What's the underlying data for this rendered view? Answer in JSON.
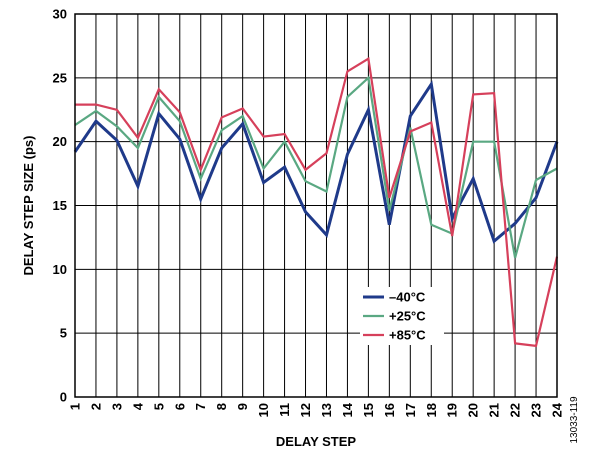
{
  "chart_data": {
    "type": "line",
    "xlabel": "DELAY STEP",
    "ylabel": "DELAY STEP SIZE (ps)",
    "figure_id": "13033-119",
    "xlim": [
      1,
      24
    ],
    "ylim": [
      0,
      30
    ],
    "x": [
      1,
      2,
      3,
      4,
      5,
      6,
      7,
      8,
      9,
      10,
      11,
      12,
      13,
      14,
      15,
      16,
      17,
      18,
      19,
      20,
      21,
      22,
      23,
      24
    ],
    "x_ticks": [
      "1",
      "2",
      "3",
      "4",
      "5",
      "6",
      "7",
      "8",
      "9",
      "10",
      "11",
      "12",
      "13",
      "14",
      "15",
      "16",
      "17",
      "18",
      "19",
      "20",
      "21",
      "22",
      "23",
      "24"
    ],
    "y_ticks": [
      0,
      5,
      10,
      15,
      20,
      25,
      30
    ],
    "grid": true,
    "legend_position": "center-right",
    "series": [
      {
        "name": "–40°C",
        "color": "#1f3a8a",
        "values": [
          19.2,
          21.6,
          20.1,
          16.5,
          22.2,
          20.2,
          15.5,
          19.5,
          21.4,
          16.8,
          18.0,
          14.5,
          12.7,
          19.0,
          22.5,
          13.5,
          22.0,
          24.5,
          14.0,
          17.1,
          12.2,
          13.6,
          15.6,
          20.0
        ]
      },
      {
        "name": "+25°C",
        "color": "#5aa882",
        "values": [
          21.3,
          22.4,
          21.2,
          19.5,
          23.5,
          21.6,
          17.1,
          20.9,
          22.0,
          17.9,
          20.0,
          16.9,
          16.1,
          23.5,
          25.0,
          14.6,
          21.1,
          13.5,
          12.8,
          20.0,
          20.0,
          10.9,
          17.0,
          17.9
        ]
      },
      {
        "name": "+85°C",
        "color": "#d6405b",
        "values": [
          22.9,
          22.9,
          22.5,
          20.3,
          24.1,
          22.3,
          17.8,
          21.9,
          22.6,
          20.4,
          20.6,
          17.8,
          19.1,
          25.5,
          26.5,
          15.6,
          20.8,
          21.5,
          12.6,
          23.7,
          23.8,
          4.2,
          4.0,
          11.0
        ]
      }
    ]
  }
}
